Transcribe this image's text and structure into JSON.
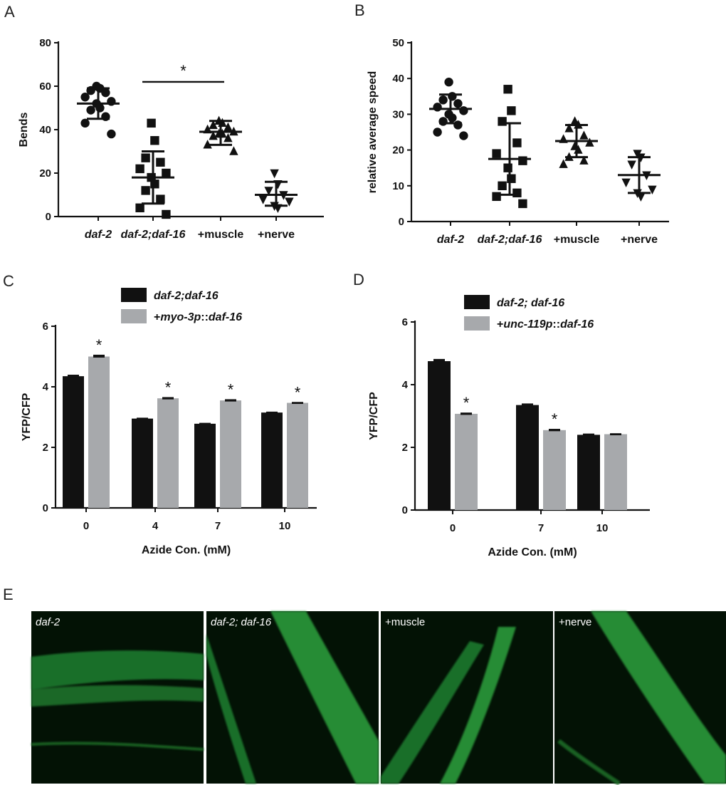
{
  "panel_letters": {
    "A": "A",
    "B": "B",
    "C": "C",
    "D": "D",
    "E": "E"
  },
  "colors": {
    "black_bar": "#111111",
    "grey_bar": "#a7a9ac",
    "micro_bg": "#031205",
    "micro_green": "#39b54a"
  },
  "chart_data": [
    {
      "panel": "A",
      "type": "scatter",
      "ylabel": "Bends",
      "ylim": [
        0,
        80
      ],
      "yticks": [
        "0",
        "20",
        "40",
        "60",
        "80"
      ],
      "categories": [
        "daf-2",
        "daf-2;daf-16",
        "+muscle",
        "+nerve"
      ],
      "markers": [
        "circle",
        "square",
        "triangle-up",
        "triangle-down"
      ],
      "series": [
        {
          "points": [
            60,
            59,
            58,
            57,
            55,
            53,
            52,
            50,
            49,
            46,
            43,
            38
          ],
          "mean": 52,
          "sd_low": 45,
          "sd_high": 59
        },
        {
          "points": [
            43,
            35,
            27,
            25,
            22,
            20,
            18,
            15,
            12,
            8,
            4,
            1
          ],
          "mean": 18,
          "sd_low": 6,
          "sd_high": 30
        },
        {
          "points": [
            44,
            43,
            42,
            41,
            40,
            39,
            38,
            38,
            37,
            36,
            33,
            30
          ],
          "mean": 39,
          "sd_low": 33,
          "sd_high": 44
        },
        {
          "points": [
            20,
            15,
            12,
            10,
            8,
            7,
            5,
            4
          ],
          "mean": 10,
          "sd_low": 5,
          "sd_high": 16
        }
      ],
      "significance": {
        "between": [
          1,
          2
        ],
        "y": 62,
        "label": "*"
      }
    },
    {
      "panel": "B",
      "type": "scatter",
      "ylabel": "relative average speed",
      "ylim": [
        0,
        50
      ],
      "yticks": [
        "0",
        "10",
        "20",
        "30",
        "40",
        "50"
      ],
      "categories": [
        "daf-2",
        "daf-2;daf-16",
        "+muscle",
        "+nerve"
      ],
      "markers": [
        "circle",
        "square",
        "triangle-up",
        "triangle-down"
      ],
      "series": [
        {
          "points": [
            39,
            35,
            34,
            33,
            32,
            31,
            30,
            29,
            28,
            27,
            25,
            24
          ],
          "mean": 31.5,
          "sd_low": 27.5,
          "sd_high": 35.5
        },
        {
          "points": [
            37,
            31,
            28,
            22,
            19,
            17,
            15,
            12,
            10,
            8,
            7,
            5
          ],
          "mean": 17.5,
          "sd_low": 7.5,
          "sd_high": 27.5
        },
        {
          "points": [
            28,
            27,
            26,
            24,
            23,
            22,
            21,
            20,
            18,
            17,
            16
          ],
          "mean": 22.5,
          "sd_low": 18,
          "sd_high": 27
        },
        {
          "points": [
            19,
            18,
            16,
            13,
            11,
            9,
            8,
            7
          ],
          "mean": 13,
          "sd_low": 8,
          "sd_high": 18
        }
      ]
    },
    {
      "panel": "C",
      "type": "bar",
      "ylabel": "YFP/CFP",
      "xlabel": "Azide Con. (mM)",
      "ylim": [
        0,
        6
      ],
      "yticks": [
        "0",
        "2",
        "4",
        "6"
      ],
      "categories": [
        "0",
        "4",
        "7",
        "10"
      ],
      "legend_position": "top",
      "series": [
        {
          "name": "daf-2;daf-16",
          "color": "#111111",
          "values": [
            4.35,
            2.95,
            2.78,
            3.15
          ],
          "err": [
            0.05,
            0.03,
            0.03,
            0.03
          ]
        },
        {
          "name_parts": [
            "+",
            "myo-3p",
            "::",
            "daf-16"
          ],
          "color": "#a7a9ac",
          "values": [
            5.0,
            3.62,
            3.55,
            3.47
          ],
          "err": [
            0.06,
            0.04,
            0.04,
            0.03
          ]
        }
      ],
      "stars": [
        "*",
        "*",
        "*",
        "*"
      ]
    },
    {
      "panel": "D",
      "type": "bar",
      "ylabel": "YFP/CFP",
      "xlabel": "Azide Con. (mM)",
      "ylim": [
        0,
        6
      ],
      "yticks": [
        "0",
        "2",
        "4",
        "6"
      ],
      "categories": [
        "0",
        "7",
        "10"
      ],
      "legend_position": "top",
      "series": [
        {
          "name": "daf-2; daf-16",
          "color": "#111111",
          "values": [
            4.75,
            3.35,
            2.4
          ],
          "err": [
            0.07,
            0.05,
            0.04
          ]
        },
        {
          "name_parts": [
            "+",
            "unc-119p",
            "::",
            "daf-16"
          ],
          "color": "#a7a9ac",
          "values": [
            3.07,
            2.55,
            2.42
          ],
          "err": [
            0.04,
            0.04,
            0.03
          ]
        }
      ],
      "stars": [
        "*",
        "*",
        ""
      ]
    }
  ],
  "micrographs": [
    {
      "label": "daf-2",
      "italic": true
    },
    {
      "label": "daf-2; daf-16",
      "italic": true
    },
    {
      "label": "+muscle",
      "italic": false
    },
    {
      "label": "+nerve",
      "italic": false
    }
  ]
}
